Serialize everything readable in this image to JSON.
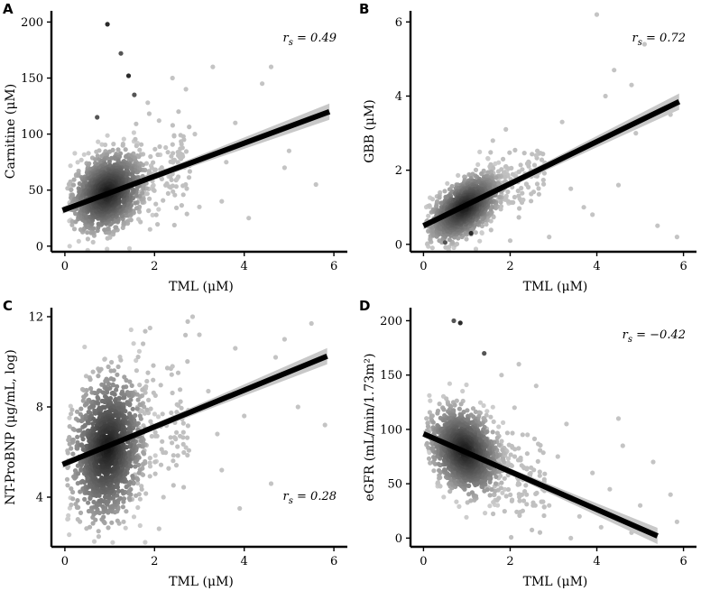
{
  "colors": {
    "ink": "#000000",
    "point_dark": "#1a1a1a",
    "point_light": "#c8c8c8",
    "ribbon": "#c8c8c8",
    "fit": "#000000"
  },
  "chart_data": [
    {
      "panel": "A",
      "type": "scatter",
      "xlabel": "TML (μM)",
      "ylabel": "Carnitine (μM)",
      "xlim": [
        -0.3,
        6.3
      ],
      "ylim": [
        -5,
        210
      ],
      "xticks": [
        0,
        2,
        4,
        6
      ],
      "yticks": [
        0,
        50,
        100,
        150,
        200
      ],
      "annotation": {
        "label": "r",
        "sub": "s",
        "value": "= 0.49",
        "corner": "top-right"
      },
      "fit": {
        "x": [
          -0.05,
          5.9
        ],
        "y": [
          32,
          120
        ]
      },
      "cloud": {
        "cx": 0.95,
        "sx": 0.38,
        "cy": 48,
        "sy": 16,
        "slope": 12,
        "n": 1300
      },
      "outliers": {
        "x": [
          0.72,
          0.95,
          1.25,
          1.42,
          1.55,
          1.85,
          2.1,
          2.25,
          2.5,
          2.7,
          3.0,
          3.3,
          3.6,
          3.8,
          4.1,
          4.3,
          4.6,
          4.9,
          5.2,
          5.6,
          5.85,
          2.9,
          3.5,
          4.4,
          5.0,
          1.9,
          2.4
        ],
        "y": [
          115,
          198,
          172,
          152,
          135,
          128,
          112,
          88,
          60,
          140,
          35,
          160,
          75,
          110,
          25,
          95,
          160,
          70,
          110,
          55,
          115,
          100,
          40,
          145,
          85,
          15,
          150
        ]
      }
    },
    {
      "panel": "B",
      "type": "scatter",
      "xlabel": "TML (μM)",
      "ylabel": "GBB (μM)",
      "xlim": [
        -0.3,
        6.3
      ],
      "ylim": [
        -0.2,
        6.3
      ],
      "xticks": [
        0,
        2,
        4,
        6
      ],
      "yticks": [
        0,
        2,
        4,
        6
      ],
      "annotation": {
        "label": "r",
        "sub": "s",
        "value": "= 0.72",
        "corner": "top-right"
      },
      "fit": {
        "x": [
          0.0,
          5.9
        ],
        "y": [
          0.5,
          3.85
        ]
      },
      "cloud": {
        "cx": 0.95,
        "sx": 0.38,
        "cy": 1.0,
        "sy": 0.35,
        "slope": 0.6,
        "n": 1300
      },
      "outliers": {
        "x": [
          0.5,
          1.1,
          1.6,
          1.9,
          2.3,
          2.6,
          2.9,
          3.2,
          3.4,
          3.7,
          4.0,
          4.2,
          4.5,
          4.8,
          5.1,
          5.4,
          5.7,
          5.85,
          4.9,
          3.9,
          2.8,
          2.0,
          4.4
        ],
        "y": [
          0.05,
          0.3,
          2.8,
          3.1,
          1.2,
          2.4,
          0.2,
          3.3,
          1.5,
          1.0,
          6.2,
          4.0,
          1.6,
          4.3,
          5.4,
          0.5,
          3.5,
          0.2,
          3.0,
          0.8,
          2.2,
          0.1,
          4.7
        ]
      }
    },
    {
      "panel": "C",
      "type": "scatter",
      "xlabel": "TML (μM)",
      "ylabel": "NT-ProBNP (μg/mL, log)",
      "xlim": [
        -0.3,
        6.3
      ],
      "ylim": [
        1.8,
        12.4
      ],
      "xticks": [
        0,
        2,
        4,
        6
      ],
      "yticks": [
        4,
        8,
        12
      ],
      "annotation": {
        "label": "r",
        "sub": "s",
        "value": "= 0.28",
        "corner": "bottom-right"
      },
      "fit": {
        "x": [
          -0.05,
          5.85
        ],
        "y": [
          5.45,
          10.25
        ]
      },
      "cloud": {
        "cx": 0.95,
        "sx": 0.38,
        "cy": 6.2,
        "sy": 1.5,
        "slope": 0.6,
        "n": 1300
      },
      "outliers": {
        "x": [
          1.9,
          2.2,
          2.4,
          2.7,
          3.0,
          3.2,
          3.5,
          3.8,
          4.0,
          4.3,
          4.6,
          4.9,
          5.2,
          5.5,
          5.8,
          2.85,
          3.9,
          4.7,
          2.1,
          5.3,
          3.4
        ],
        "y": [
          11.5,
          4.0,
          9.8,
          6.2,
          11.2,
          8.7,
          5.2,
          10.6,
          7.6,
          9.1,
          4.6,
          11.0,
          8.0,
          11.7,
          7.2,
          12.0,
          3.5,
          10.2,
          2.6,
          9.6,
          6.8
        ]
      }
    },
    {
      "panel": "D",
      "type": "scatter",
      "xlabel": "TML (μM)",
      "ylabel": "eGFR (mL/min/1.73m²)",
      "xlim": [
        -0.3,
        6.3
      ],
      "ylim": [
        -8,
        212
      ],
      "xticks": [
        0,
        2,
        4,
        6
      ],
      "yticks": [
        0,
        50,
        100,
        150,
        200
      ],
      "annotation": {
        "label": "r",
        "sub": "s",
        "value": "= −0.42",
        "corner": "top-right"
      },
      "fit": {
        "x": [
          0.0,
          5.4
        ],
        "y": [
          96,
          2
        ]
      },
      "cloud": {
        "cx": 0.95,
        "sx": 0.38,
        "cy": 80,
        "sy": 18,
        "slope": -14,
        "n": 1300
      },
      "outliers": {
        "x": [
          0.7,
          0.85,
          1.4,
          1.8,
          2.1,
          2.4,
          2.6,
          2.9,
          3.1,
          3.3,
          3.6,
          3.9,
          4.1,
          4.3,
          4.6,
          4.8,
          5.0,
          5.3,
          5.7,
          5.85,
          2.2,
          3.4,
          4.5
        ],
        "y": [
          200,
          198,
          170,
          150,
          120,
          95,
          140,
          30,
          75,
          105,
          20,
          60,
          10,
          45,
          85,
          5,
          30,
          70,
          40,
          15,
          160,
          0,
          110
        ]
      }
    }
  ]
}
